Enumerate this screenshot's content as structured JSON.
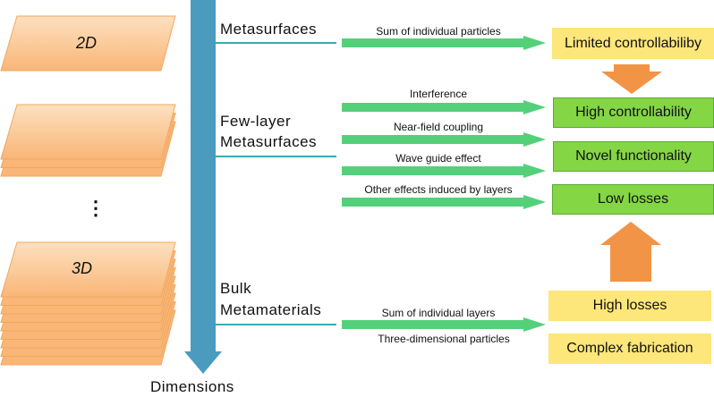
{
  "planes": {
    "top_label": "2D",
    "bottom_label": "3D",
    "ellipsis": "⋮"
  },
  "axis": {
    "label": "Dimensions"
  },
  "categories": {
    "metasurfaces": "Metasurfaces",
    "few_layer_line1": "Few-layer",
    "few_layer_line2": "Metasurfaces",
    "bulk_line1": "Bulk",
    "bulk_line2": "Metamaterials"
  },
  "mechanisms": [
    "Sum of individual particles",
    "Interference",
    "Near-field coupling",
    "Wave guide effect",
    "Other effects induced by layers",
    "Sum of individual layers",
    "Three-dimensional particles"
  ],
  "outcomes": {
    "limited": "Limited controllabiliby",
    "high_control": "High controllability",
    "novel": "Novel functionality",
    "low_losses": "Low losses",
    "high_losses": "High losses",
    "complex": "Complex fabrication"
  },
  "colors": {
    "plane": "#fbbf80",
    "axis_arrow": "#4a9bbd",
    "teal_line": "#3aaab0",
    "green_arrow": "#55d07a",
    "yellow_box": "#fde67a",
    "green_box": "#84d645",
    "orange_arrow": "#f29445"
  }
}
